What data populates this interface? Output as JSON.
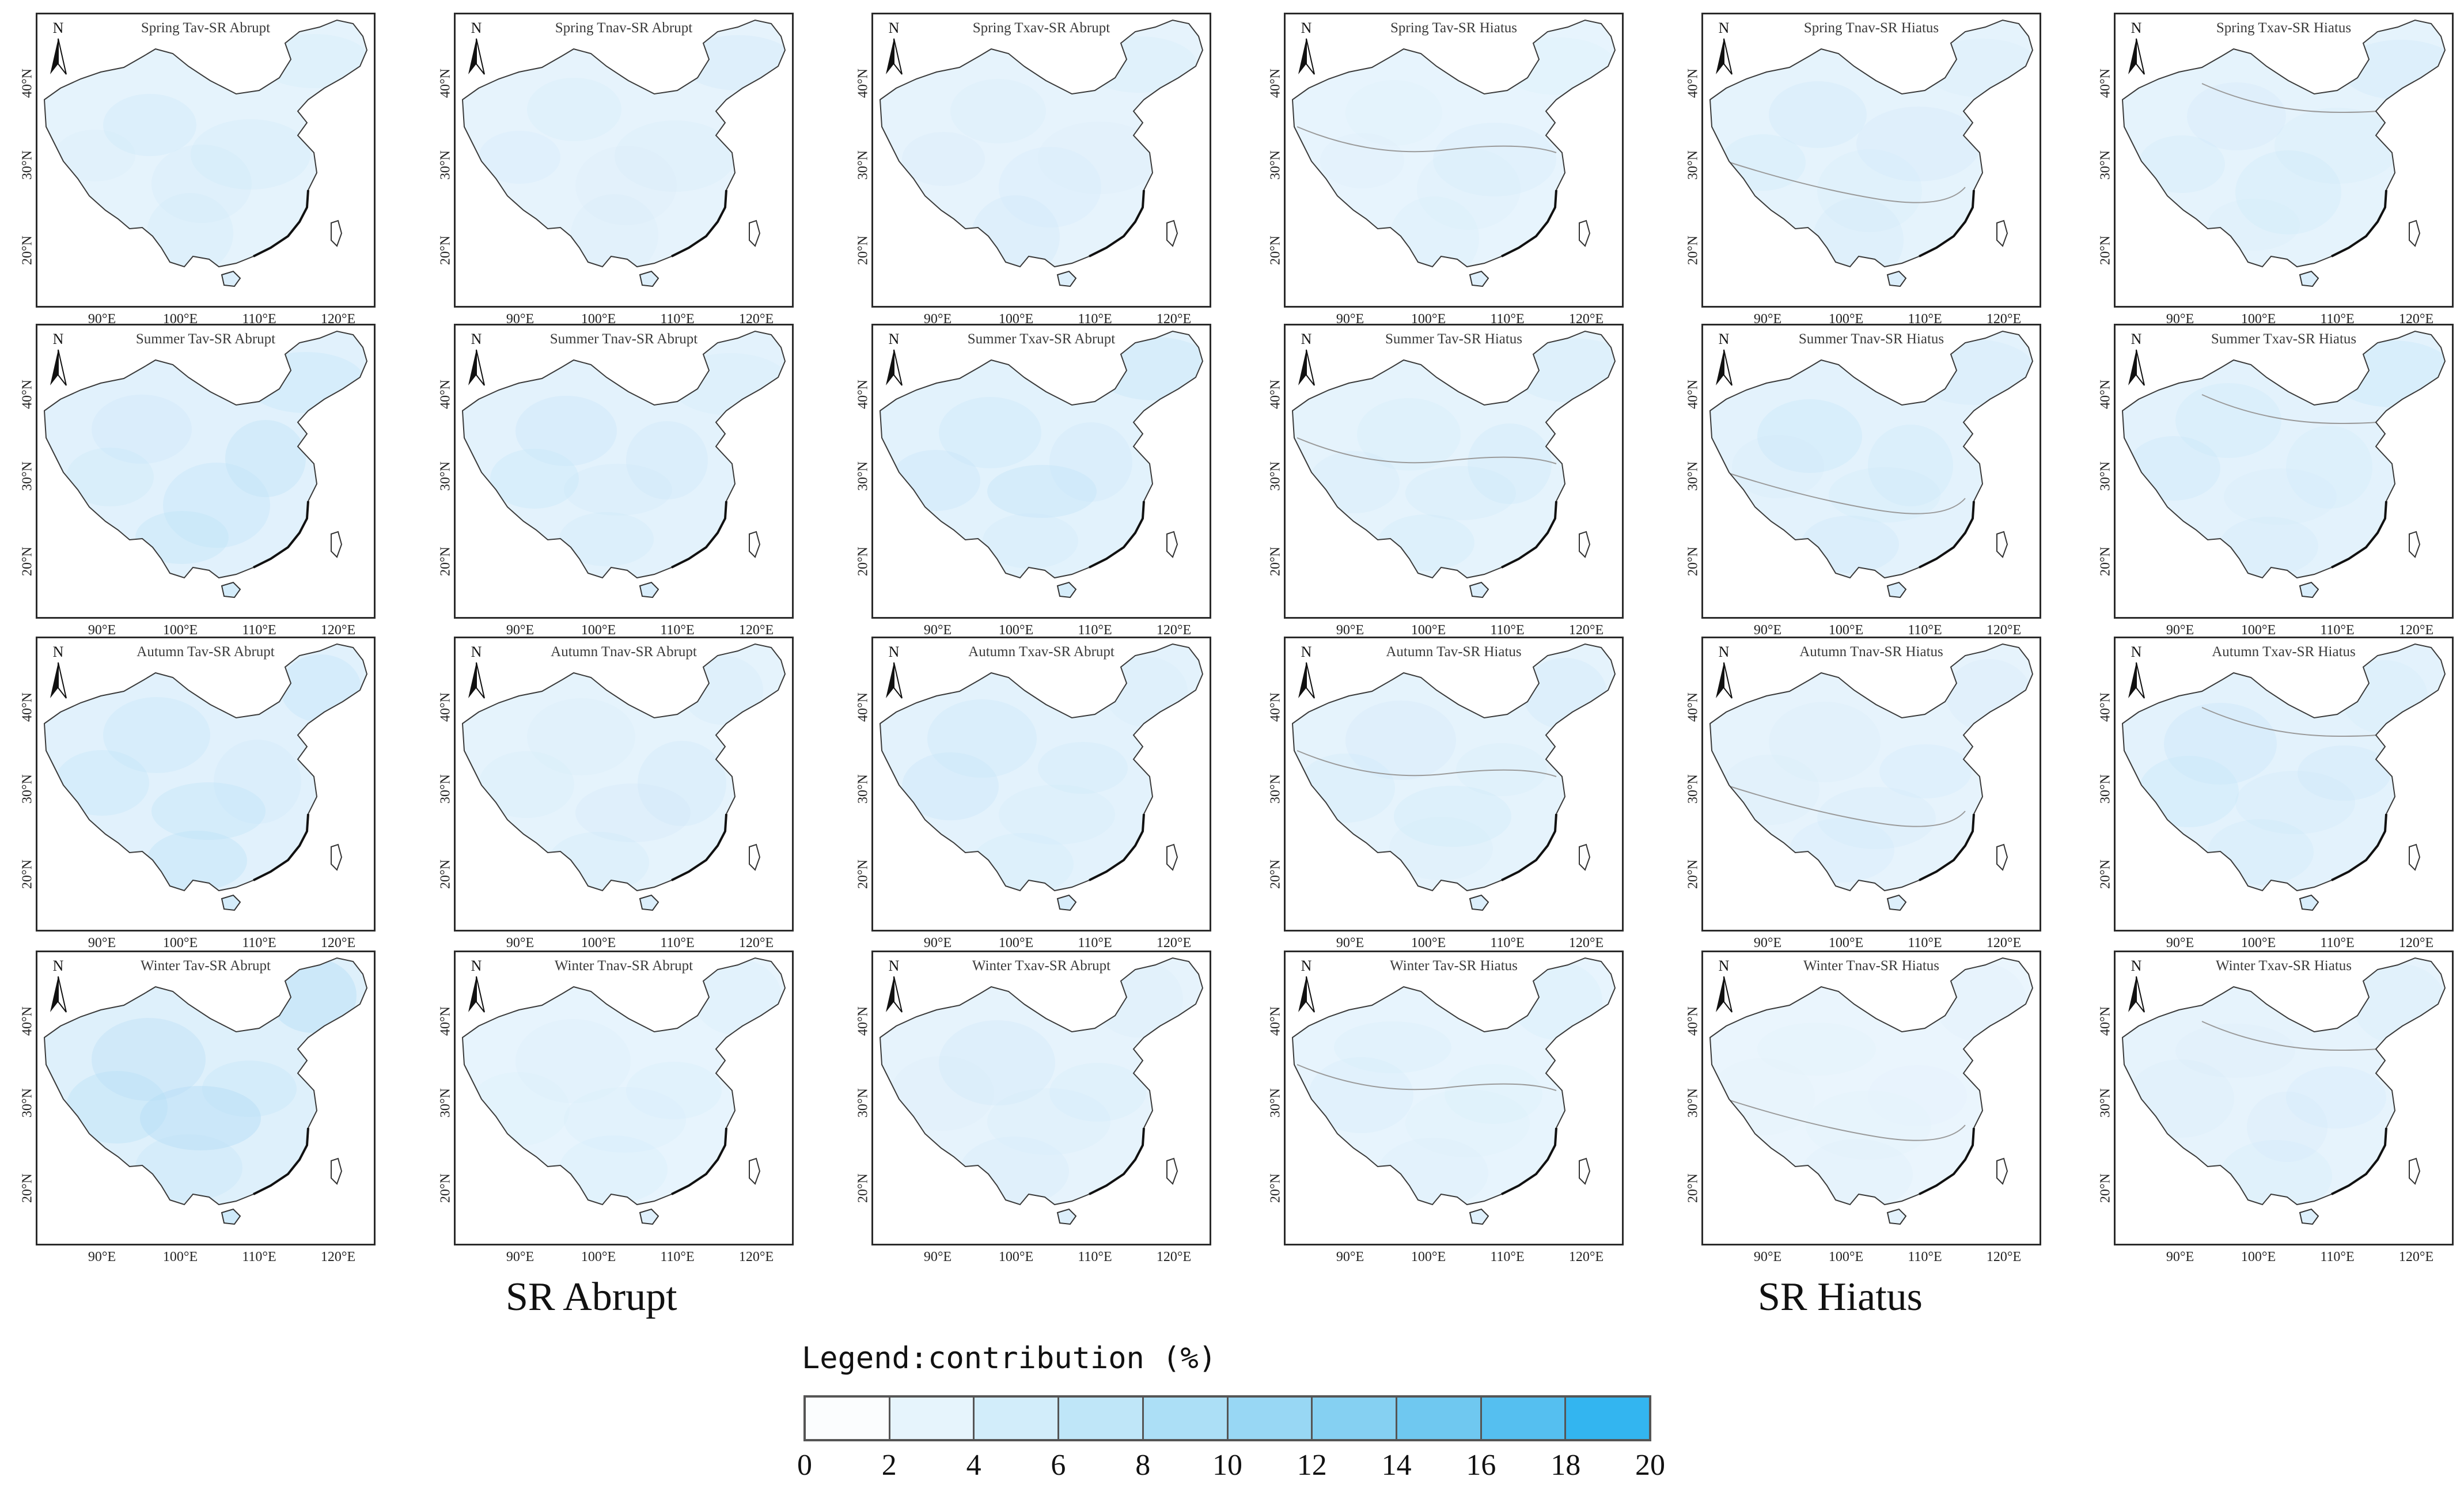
{
  "panels": [
    {
      "title": "Spring Tav-SR Abrupt",
      "kind": "abrupt",
      "intensity": 0.55
    },
    {
      "title": "Spring Tnav-SR Abrupt",
      "kind": "abrupt",
      "intensity": 0.5
    },
    {
      "title": "Spring Txav-SR Abrupt",
      "kind": "abrupt",
      "intensity": 0.5
    },
    {
      "title": "Spring Tav-SR Hiatus",
      "kind": "hiatus",
      "intensity": 0.45
    },
    {
      "title": "Spring Tnav-SR Hiatus",
      "kind": "hiatus",
      "intensity": 0.55
    },
    {
      "title": "Spring Txav-SR Hiatus",
      "kind": "hiatus",
      "intensity": 0.55
    },
    {
      "title": "Summer Tav-SR Abrupt",
      "kind": "abrupt",
      "intensity": 0.7
    },
    {
      "title": "Summer Tnav-SR Abrupt",
      "kind": "abrupt",
      "intensity": 0.6
    },
    {
      "title": "Summer Txav-SR Abrupt",
      "kind": "abrupt",
      "intensity": 0.65
    },
    {
      "title": "Summer Tav-SR Hiatus",
      "kind": "hiatus",
      "intensity": 0.55
    },
    {
      "title": "Summer Tnav-SR Hiatus",
      "kind": "hiatus",
      "intensity": 0.6
    },
    {
      "title": "Summer Txav-SR Hiatus",
      "kind": "hiatus",
      "intensity": 0.6
    },
    {
      "title": "Autumn Tav-SR Abrupt",
      "kind": "abrupt",
      "intensity": 0.7
    },
    {
      "title": "Autumn Tnav-SR Abrupt",
      "kind": "abrupt",
      "intensity": 0.55
    },
    {
      "title": "Autumn Txav-SR Abrupt",
      "kind": "abrupt",
      "intensity": 0.6
    },
    {
      "title": "Autumn Tav-SR Hiatus",
      "kind": "hiatus",
      "intensity": 0.55
    },
    {
      "title": "Autumn Tnav-SR Hiatus",
      "kind": "hiatus",
      "intensity": 0.5
    },
    {
      "title": "Autumn Txav-SR Hiatus",
      "kind": "hiatus",
      "intensity": 0.6
    },
    {
      "title": "Winter Tav-SR Abrupt",
      "kind": "abrupt",
      "intensity": 0.8
    },
    {
      "title": "Winter Tnav-SR Abrupt",
      "kind": "abrupt",
      "intensity": 0.45
    },
    {
      "title": "Winter Txav-SR Abrupt",
      "kind": "abrupt",
      "intensity": 0.5
    },
    {
      "title": "Winter Tav-SR Hiatus",
      "kind": "hiatus",
      "intensity": 0.45
    },
    {
      "title": "Winter Tnav-SR Hiatus",
      "kind": "hiatus",
      "intensity": 0.35
    },
    {
      "title": "Winter Txav-SR Hiatus",
      "kind": "hiatus",
      "intensity": 0.5
    }
  ],
  "x_ticks": [
    "90°E",
    "100°E",
    "110°E",
    "120°E"
  ],
  "y_ticks": [
    "40°N",
    "30°N",
    "20°N"
  ],
  "north_label": "N",
  "group_labels": {
    "abrupt": "SR Abrupt",
    "hiatus": "SR Hiatus"
  },
  "legend": {
    "title": "Legend:contribution (%)",
    "ticks": [
      "0",
      "2",
      "4",
      "6",
      "8",
      "10",
      "12",
      "14",
      "16",
      "18",
      "20"
    ],
    "colors": [
      "#fbfdfe",
      "#e6f4fc",
      "#d2edfa",
      "#bfe6f8",
      "#acdff6",
      "#98d7f4",
      "#85d0f2",
      "#6fc8f0",
      "#55bff0",
      "#33b5f0"
    ]
  },
  "colors": {
    "map_fill_light": "#f3f9fe",
    "map_fill_dark": "#a9d9f5",
    "outline": "#3a3a3a",
    "coast": "#111111"
  }
}
